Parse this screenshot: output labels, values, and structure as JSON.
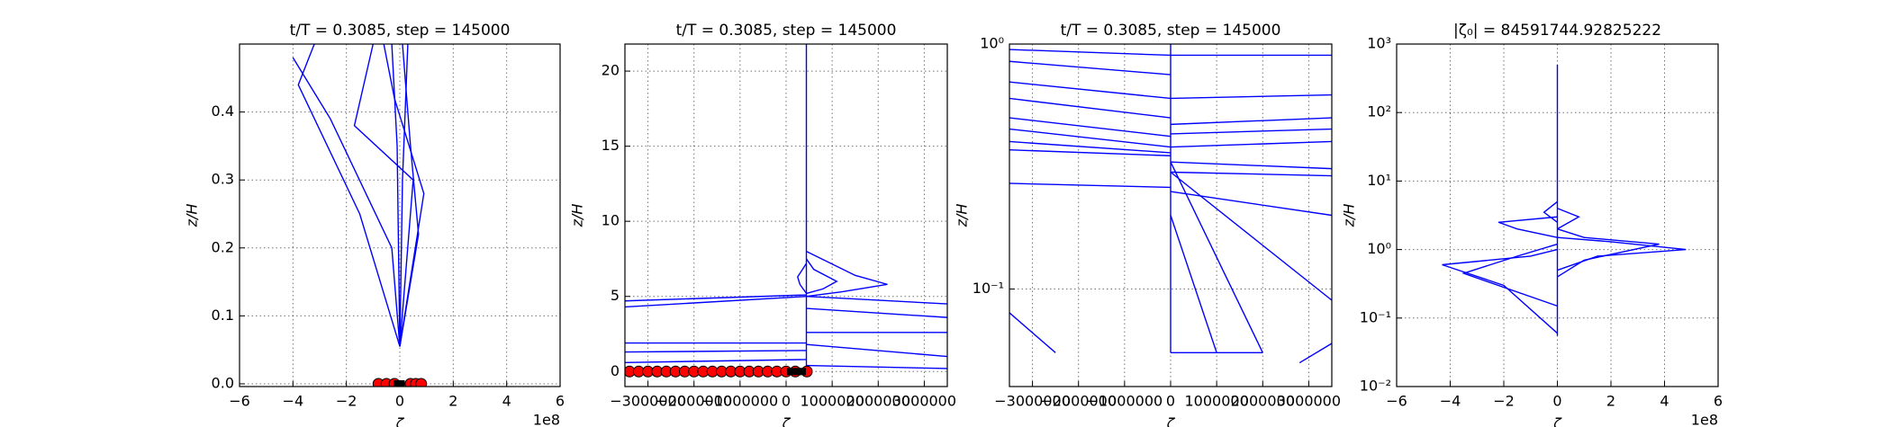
{
  "chart_data": [
    {
      "type": "line",
      "title": "t/T = 0.3085, step = 145000",
      "x_label": "ζ",
      "y_label": "z/H",
      "x_offset_label": "1e8",
      "xlim": [
        -600000000,
        600000000
      ],
      "ylim": [
        -0.004,
        0.5
      ],
      "grid": true,
      "log_y": false,
      "xticks": [
        {
          "value": -600000000,
          "label": "−6"
        },
        {
          "value": -400000000,
          "label": "−4"
        },
        {
          "value": -200000000,
          "label": "−2"
        },
        0,
        {
          "value": 200000000,
          "label": "2"
        },
        {
          "value": 400000000,
          "label": "4"
        },
        {
          "value": 600000000,
          "label": "6"
        }
      ],
      "yticks": [
        {
          "value": 0,
          "label": "0.0"
        },
        0.1,
        0.2,
        0.3,
        0.4
      ],
      "series": [
        {
          "color": "#0000ff",
          "x": [
            0,
            -150000000,
            -380000000,
            -320000000
          ],
          "y": [
            0.055,
            0.25,
            0.44,
            0.5
          ]
        },
        {
          "color": "#0000ff",
          "x": [
            0,
            50000000,
            -170000000,
            -100000000
          ],
          "y": [
            0.055,
            0.3,
            0.38,
            0.5
          ]
        },
        {
          "color": "#0000ff",
          "x": [
            0,
            -30000000,
            -260000000,
            -400000000
          ],
          "y": [
            0.055,
            0.2,
            0.39,
            0.48
          ]
        },
        {
          "color": "#0000ff",
          "x": [
            0,
            70000000,
            40000000,
            10000000
          ],
          "y": [
            0.055,
            0.22,
            0.35,
            0.5
          ]
        },
        {
          "color": "#0000ff",
          "x": [
            0,
            90000000,
            -20000000,
            -60000000
          ],
          "y": [
            0.055,
            0.28,
            0.42,
            0.5
          ]
        },
        {
          "color": "#0000ff",
          "x": [
            0,
            10000000,
            30000000
          ],
          "y": [
            0.055,
            0.3,
            0.5
          ]
        },
        {
          "color": "#0000ff",
          "x": [
            0,
            -10000000,
            -30000000
          ],
          "y": [
            0.055,
            0.35,
            0.5
          ]
        },
        {
          "color": "#ff0000",
          "marker": "o",
          "x": [
            -80000000,
            -50000000,
            -20000000,
            40000000,
            60000000,
            80000000
          ],
          "y": [
            0,
            0,
            0,
            0,
            0,
            0
          ]
        },
        {
          "color": "#000000",
          "marker": "s",
          "x": [
            -10000000,
            5000000
          ],
          "y": [
            0,
            0
          ]
        }
      ]
    },
    {
      "type": "line",
      "title": "t/T = 0.3085, step = 145000",
      "x_label": "ζ",
      "y_label": "z/H",
      "xlim": [
        -3500000,
        3500000
      ],
      "ylim": [
        -1,
        21.8
      ],
      "grid": true,
      "log_y": false,
      "xticks": [
        {
          "value": -3000000,
          "label": "−3000000"
        },
        {
          "value": -2000000,
          "label": "−2000000"
        },
        {
          "value": -1000000,
          "label": "−1000000"
        },
        0,
        1000000,
        2000000,
        3000000
      ],
      "yticks": [
        0,
        5,
        10,
        15,
        20
      ],
      "series": [
        {
          "color": "#0000ff",
          "x": [
            440000,
            440000
          ],
          "y": [
            0,
            21.8
          ]
        },
        {
          "color": "#0000ff",
          "x": [
            440000,
            1200000,
            2200000,
            1500000,
            440000
          ],
          "y": [
            5.0,
            5.3,
            5.8,
            6.4,
            8.0
          ]
        },
        {
          "color": "#0000ff",
          "x": [
            440000,
            800000,
            1100000,
            600000,
            440000
          ],
          "y": [
            5.2,
            5.5,
            6.0,
            6.8,
            7.5
          ]
        },
        {
          "color": "#0000ff",
          "x": [
            440000,
            300000,
            250000,
            440000
          ],
          "y": [
            5.2,
            5.8,
            6.3,
            7.2
          ]
        },
        {
          "color": "#0000ff",
          "x": [
            -3500000,
            440000
          ],
          "y": [
            4.3,
            5.0
          ]
        },
        {
          "color": "#0000ff",
          "x": [
            -3500000,
            440000
          ],
          "y": [
            4.7,
            5.1
          ]
        },
        {
          "color": "#0000ff",
          "x": [
            -3500000,
            440000
          ],
          "y": [
            1.9,
            1.9
          ]
        },
        {
          "color": "#0000ff",
          "x": [
            -3500000,
            440000
          ],
          "y": [
            1.3,
            1.4
          ]
        },
        {
          "color": "#0000ff",
          "x": [
            -3500000,
            440000
          ],
          "y": [
            0.6,
            0.8
          ]
        },
        {
          "color": "#0000ff",
          "x": [
            440000,
            3500000
          ],
          "y": [
            5.0,
            4.5
          ]
        },
        {
          "color": "#0000ff",
          "x": [
            440000,
            3500000
          ],
          "y": [
            4.2,
            3.6
          ]
        },
        {
          "color": "#0000ff",
          "x": [
            440000,
            3500000
          ],
          "y": [
            2.6,
            2.6
          ]
        },
        {
          "color": "#0000ff",
          "x": [
            440000,
            3500000
          ],
          "y": [
            1.8,
            1.0
          ]
        },
        {
          "color": "#0000ff",
          "x": [
            440000,
            3500000
          ],
          "y": [
            0.4,
            0.2
          ]
        },
        {
          "color": "#ff0000",
          "marker": "o",
          "x": [
            -3400000,
            -3200000,
            -3000000,
            -2800000,
            -2600000,
            -2400000,
            -2200000,
            -2000000,
            -1800000,
            -1600000,
            -1400000,
            -1200000,
            -1000000,
            -800000,
            -600000,
            -400000,
            -200000,
            0,
            200000,
            450000
          ],
          "y": [
            0,
            0,
            0,
            0,
            0,
            0,
            0,
            0,
            0,
            0,
            0,
            0,
            0,
            0,
            0,
            0,
            0,
            0,
            0,
            0
          ]
        },
        {
          "color": "#000000",
          "marker": "s",
          "x": [
            100000,
            250000,
            350000
          ],
          "y": [
            0,
            0,
            0
          ]
        }
      ]
    },
    {
      "type": "line",
      "title": "t/T = 0.3085, step = 145000",
      "x_label": "ζ",
      "y_label": "z/H",
      "xlim": [
        -3500000,
        3500000
      ],
      "ylim": [
        0.04,
        1
      ],
      "grid": true,
      "log_y": true,
      "xticks": [
        {
          "value": -3000000,
          "label": "−3000000"
        },
        {
          "value": -2000000,
          "label": "−2000000"
        },
        {
          "value": -1000000,
          "label": "−1000000"
        },
        0,
        1000000,
        2000000,
        3000000
      ],
      "yticks": [
        {
          "value": 0.1,
          "label": "10⁻¹"
        },
        {
          "value": 1,
          "label": "10⁰"
        }
      ],
      "series": [
        {
          "color": "#0000ff",
          "x": [
            -3500000,
            0
          ],
          "y": [
            0.95,
            0.9
          ]
        },
        {
          "color": "#0000ff",
          "x": [
            -3500000,
            0
          ],
          "y": [
            0.85,
            0.75
          ]
        },
        {
          "color": "#0000ff",
          "x": [
            -3500000,
            0
          ],
          "y": [
            0.7,
            0.6
          ]
        },
        {
          "color": "#0000ff",
          "x": [
            -3500000,
            0
          ],
          "y": [
            0.6,
            0.5
          ]
        },
        {
          "color": "#0000ff",
          "x": [
            -3500000,
            0
          ],
          "y": [
            0.5,
            0.42
          ]
        },
        {
          "color": "#0000ff",
          "x": [
            -3500000,
            0
          ],
          "y": [
            0.45,
            0.38
          ]
        },
        {
          "color": "#0000ff",
          "x": [
            -3500000,
            0
          ],
          "y": [
            0.4,
            0.36
          ]
        },
        {
          "color": "#0000ff",
          "x": [
            -3500000,
            0
          ],
          "y": [
            0.37,
            0.35
          ]
        },
        {
          "color": "#0000ff",
          "x": [
            0,
            0
          ],
          "y": [
            0.055,
            1
          ]
        },
        {
          "color": "#0000ff",
          "x": [
            0,
            3500000
          ],
          "y": [
            0.9,
            0.9
          ]
        },
        {
          "color": "#0000ff",
          "x": [
            0,
            3500000
          ],
          "y": [
            0.6,
            0.62
          ]
        },
        {
          "color": "#0000ff",
          "x": [
            0,
            3500000
          ],
          "y": [
            0.47,
            0.5
          ]
        },
        {
          "color": "#0000ff",
          "x": [
            0,
            3500000
          ],
          "y": [
            0.43,
            0.45
          ]
        },
        {
          "color": "#0000ff",
          "x": [
            0,
            3500000
          ],
          "y": [
            0.38,
            0.4
          ]
        },
        {
          "color": "#0000ff",
          "x": [
            0,
            3500000
          ],
          "y": [
            0.33,
            0.31
          ]
        },
        {
          "color": "#0000ff",
          "x": [
            0,
            3500000
          ],
          "y": [
            0.3,
            0.29
          ]
        },
        {
          "color": "#0000ff",
          "x": [
            0,
            2000000
          ],
          "y": [
            0.33,
            0.055
          ]
        },
        {
          "color": "#0000ff",
          "x": [
            0,
            3500000
          ],
          "y": [
            0.3,
            0.09
          ]
        },
        {
          "color": "#0000ff",
          "x": [
            0,
            3500000
          ],
          "y": [
            0.25,
            0.2
          ]
        },
        {
          "color": "#0000ff",
          "x": [
            0,
            1000000
          ],
          "y": [
            0.2,
            0.055
          ]
        },
        {
          "color": "#0000ff",
          "x": [
            0,
            2000000
          ],
          "y": [
            0.055,
            0.055
          ]
        },
        {
          "color": "#0000ff",
          "x": [
            -3500000,
            0
          ],
          "y": [
            0.27,
            0.26
          ]
        },
        {
          "color": "#0000ff",
          "x": [
            -3500000,
            -2500000
          ],
          "y": [
            0.08,
            0.055
          ]
        },
        {
          "color": "#0000ff",
          "x": [
            2800000,
            3500000
          ],
          "y": [
            0.05,
            0.06
          ]
        }
      ]
    },
    {
      "type": "line",
      "title": "|ζ₀| = 84591744.92825222",
      "x_label": "ζ",
      "y_label": "z/H",
      "x_offset_label": "1e8",
      "xlim": [
        -600000000,
        600000000
      ],
      "ylim": [
        0.01,
        1000
      ],
      "grid": true,
      "log_y": true,
      "xticks": [
        {
          "value": -600000000,
          "label": "−6"
        },
        {
          "value": -400000000,
          "label": "−4"
        },
        {
          "value": -200000000,
          "label": "−2"
        },
        0,
        {
          "value": 200000000,
          "label": "2"
        },
        {
          "value": 400000000,
          "label": "4"
        },
        {
          "value": 600000000,
          "label": "6"
        }
      ],
      "yticks": [
        {
          "value": 0.01,
          "label": "10⁻²"
        },
        {
          "value": 0.1,
          "label": "10⁻¹"
        },
        {
          "value": 1,
          "label": "10⁰"
        },
        {
          "value": 10,
          "label": "10¹"
        },
        {
          "value": 100,
          "label": "10²"
        },
        {
          "value": 1000,
          "label": "10³"
        }
      ],
      "series": [
        {
          "color": "#0000ff",
          "x": [
            0,
            0
          ],
          "y": [
            0.055,
            500
          ]
        },
        {
          "color": "#0000ff",
          "x": [
            0,
            -200000000,
            -430000000,
            -100000000,
            0
          ],
          "y": [
            0.06,
            0.3,
            0.6,
            0.8,
            1.0
          ]
        },
        {
          "color": "#0000ff",
          "x": [
            0,
            150000000,
            480000000,
            200000000,
            0
          ],
          "y": [
            0.5,
            0.8,
            1.0,
            1.3,
            1.5
          ]
        },
        {
          "color": "#0000ff",
          "x": [
            0,
            -150000000,
            -220000000,
            0
          ],
          "y": [
            1.5,
            2.0,
            2.5,
            3.0
          ]
        },
        {
          "color": "#0000ff",
          "x": [
            0,
            100000000,
            380000000,
            100000000,
            0
          ],
          "y": [
            0.4,
            0.7,
            1.2,
            1.5,
            2
          ]
        },
        {
          "color": "#0000ff",
          "x": [
            0,
            -350000000,
            -150000000,
            0
          ],
          "y": [
            0.15,
            0.45,
            0.8,
            1.2
          ]
        },
        {
          "color": "#0000ff",
          "x": [
            0,
            80000000,
            0
          ],
          "y": [
            2,
            3,
            4
          ]
        },
        {
          "color": "#0000ff",
          "x": [
            0,
            -50000000,
            0
          ],
          "y": [
            2.5,
            3.5,
            5
          ]
        }
      ]
    }
  ]
}
